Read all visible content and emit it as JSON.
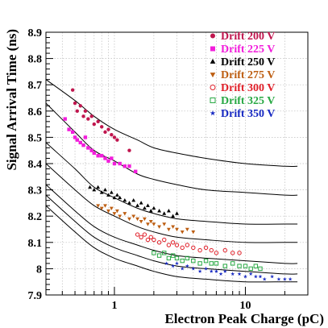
{
  "chart_data": {
    "type": "scatter",
    "title": "",
    "xlabel": "Electron Peak Charge (pC)",
    "ylabel": "Signal Arrival Time (ns)",
    "xscale": "log",
    "xlim": [
      0.3,
      30
    ],
    "ylim": [
      7.9,
      8.9
    ],
    "xticks": [
      {
        "value": 1,
        "label": "1"
      },
      {
        "value": 10,
        "label": "10"
      }
    ],
    "yticks": [
      {
        "value": 7.9,
        "label": "7.9"
      },
      {
        "value": 8.0,
        "label": "8"
      },
      {
        "value": 8.1,
        "label": "8.1"
      },
      {
        "value": 8.2,
        "label": "8.2"
      },
      {
        "value": 8.3,
        "label": "8.3"
      },
      {
        "value": 8.4,
        "label": "8.4"
      },
      {
        "value": 8.5,
        "label": "8.5"
      },
      {
        "value": 8.6,
        "label": "8.6"
      },
      {
        "value": 8.7,
        "label": "8.7"
      },
      {
        "value": 8.8,
        "label": "8.8"
      },
      {
        "value": 8.9,
        "label": "8.9"
      }
    ],
    "grid": true,
    "legend_position": "top-right",
    "series": [
      {
        "name": "Drift 200 V",
        "color": "#c0164e",
        "marker": "circle-filled",
        "x": [
          0.48,
          0.5,
          0.52,
          0.55,
          0.58,
          0.6,
          0.63,
          0.67,
          0.7,
          0.75,
          0.8,
          0.85,
          0.9,
          0.95,
          1.0,
          1.05,
          1.3
        ],
        "y": [
          8.68,
          8.63,
          8.6,
          8.62,
          8.58,
          8.6,
          8.57,
          8.58,
          8.55,
          8.56,
          8.54,
          8.52,
          8.53,
          8.51,
          8.5,
          8.49,
          8.45
        ],
        "fit": [
          [
            0.3,
            8.72
          ],
          [
            0.5,
            8.64
          ],
          [
            0.7,
            8.58
          ],
          [
            1,
            8.53
          ],
          [
            1.5,
            8.49
          ],
          [
            2,
            8.46
          ],
          [
            3,
            8.44
          ],
          [
            5,
            8.42
          ],
          [
            10,
            8.4
          ],
          [
            20,
            8.39
          ],
          [
            25,
            8.39
          ]
        ]
      },
      {
        "name": "Drift 225 V",
        "color": "#f21ddb",
        "marker": "square-filled",
        "x": [
          0.42,
          0.45,
          0.48,
          0.5,
          0.52,
          0.55,
          0.58,
          0.6,
          0.63,
          0.67,
          0.7,
          0.75,
          0.8,
          0.85,
          0.9,
          0.95,
          1.0,
          1.1,
          1.2,
          1.3,
          1.45
        ],
        "y": [
          8.57,
          8.53,
          8.52,
          8.5,
          8.49,
          8.48,
          8.47,
          8.5,
          8.46,
          8.45,
          8.44,
          8.43,
          8.43,
          8.42,
          8.41,
          8.42,
          8.4,
          8.4,
          8.39,
          8.39,
          8.37
        ],
        "fit": [
          [
            0.3,
            8.63
          ],
          [
            0.5,
            8.52
          ],
          [
            0.7,
            8.45
          ],
          [
            1,
            8.41
          ],
          [
            1.5,
            8.36
          ],
          [
            2,
            8.34
          ],
          [
            3,
            8.32
          ],
          [
            5,
            8.3
          ],
          [
            10,
            8.29
          ],
          [
            20,
            8.28
          ],
          [
            25,
            8.28
          ]
        ]
      },
      {
        "name": "Drift 250 V",
        "color": "#000000",
        "marker": "triangle-up",
        "x": [
          0.65,
          0.7,
          0.75,
          0.8,
          0.85,
          0.9,
          0.95,
          1.0,
          1.05,
          1.1,
          1.2,
          1.3,
          1.4,
          1.5,
          1.6,
          1.7,
          1.8,
          1.9,
          2.0,
          2.2,
          2.4,
          2.6,
          2.8,
          3.0
        ],
        "y": [
          8.31,
          8.3,
          8.31,
          8.29,
          8.3,
          8.28,
          8.29,
          8.27,
          8.28,
          8.27,
          8.26,
          8.25,
          8.26,
          8.24,
          8.25,
          8.23,
          8.24,
          8.22,
          8.23,
          8.22,
          8.21,
          8.22,
          8.2,
          8.21
        ],
        "fit": [
          [
            0.3,
            8.48
          ],
          [
            0.5,
            8.38
          ],
          [
            0.7,
            8.31
          ],
          [
            1,
            8.27
          ],
          [
            1.5,
            8.23
          ],
          [
            2,
            8.21
          ],
          [
            3,
            8.19
          ],
          [
            5,
            8.18
          ],
          [
            10,
            8.17
          ],
          [
            20,
            8.17
          ],
          [
            25,
            8.17
          ]
        ]
      },
      {
        "name": "Drift 275 V",
        "color": "#bd5e12",
        "marker": "triangle-down",
        "x": [
          0.75,
          0.8,
          0.85,
          0.9,
          0.95,
          1.0,
          1.05,
          1.1,
          1.2,
          1.3,
          1.4,
          1.5,
          1.6,
          1.7,
          1.8,
          1.9,
          2.0,
          2.2,
          2.4,
          2.6,
          2.8,
          3.0,
          3.3,
          3.6,
          4.0
        ],
        "y": [
          8.24,
          8.23,
          8.24,
          8.22,
          8.23,
          8.21,
          8.22,
          8.2,
          8.21,
          8.19,
          8.2,
          8.19,
          8.18,
          8.19,
          8.17,
          8.18,
          8.17,
          8.16,
          8.17,
          8.15,
          8.16,
          8.15,
          8.14,
          8.15,
          8.14
        ],
        "fit": [
          [
            0.3,
            8.4
          ],
          [
            0.5,
            8.3
          ],
          [
            0.7,
            8.24
          ],
          [
            1,
            8.2
          ],
          [
            1.5,
            8.16
          ],
          [
            2,
            8.14
          ],
          [
            3,
            8.12
          ],
          [
            5,
            8.11
          ],
          [
            10,
            8.1
          ],
          [
            20,
            8.1
          ],
          [
            25,
            8.1
          ]
        ]
      },
      {
        "name": "Drift 300 V",
        "color": "#e0202a",
        "marker": "circle-open",
        "x": [
          1.5,
          1.6,
          1.7,
          1.8,
          1.9,
          2.0,
          2.2,
          2.4,
          2.6,
          2.8,
          3.0,
          3.3,
          3.6,
          4.0,
          4.5,
          5.0,
          5.5,
          6.0,
          7.0,
          8.0,
          9.0
        ],
        "y": [
          8.13,
          8.12,
          8.13,
          8.11,
          8.12,
          8.11,
          8.1,
          8.11,
          8.09,
          8.1,
          8.09,
          8.08,
          8.09,
          8.08,
          8.07,
          8.08,
          8.07,
          8.06,
          8.07,
          8.06,
          8.06
        ],
        "fit": [
          [
            0.3,
            8.32
          ],
          [
            0.5,
            8.22
          ],
          [
            0.7,
            8.16
          ],
          [
            1,
            8.12
          ],
          [
            1.5,
            8.09
          ],
          [
            2,
            8.07
          ],
          [
            3,
            8.05
          ],
          [
            5,
            8.04
          ],
          [
            10,
            8.03
          ],
          [
            20,
            8.02
          ],
          [
            25,
            8.02
          ]
        ]
      },
      {
        "name": "Drift 325 V",
        "color": "#27a843",
        "marker": "square-open",
        "x": [
          2.0,
          2.2,
          2.4,
          2.6,
          2.8,
          3.0,
          3.3,
          3.6,
          4.0,
          4.5,
          5.0,
          5.5,
          6.0,
          7.0,
          8.0,
          9.0,
          10.0,
          11.0,
          12.0,
          13.0
        ],
        "y": [
          8.06,
          8.05,
          8.06,
          8.04,
          8.05,
          8.04,
          8.03,
          8.04,
          8.03,
          8.02,
          8.03,
          8.02,
          8.02,
          8.01,
          8.02,
          8.01,
          8.01,
          8.0,
          8.01,
          8.0
        ],
        "fit": [
          [
            0.3,
            8.28
          ],
          [
            0.5,
            8.18
          ],
          [
            0.7,
            8.12
          ],
          [
            1,
            8.08
          ],
          [
            1.5,
            8.05
          ],
          [
            2,
            8.03
          ],
          [
            3,
            8.01
          ],
          [
            5,
            8.0
          ],
          [
            10,
            7.99
          ],
          [
            20,
            7.98
          ],
          [
            25,
            7.98
          ]
        ]
      },
      {
        "name": "Drift 350 V",
        "color": "#1628c2",
        "marker": "star",
        "x": [
          2.5,
          2.8,
          3.0,
          3.3,
          3.6,
          4.0,
          4.5,
          5.0,
          5.5,
          6.0,
          6.5,
          7.0,
          8.0,
          9.0,
          10.0,
          11.0,
          12.0,
          13.0,
          14.0,
          16.0,
          18.0,
          20.0,
          22.0
        ],
        "y": [
          8.02,
          8.01,
          8.02,
          8.0,
          8.01,
          8.0,
          7.99,
          8.0,
          7.99,
          7.99,
          7.98,
          7.99,
          7.98,
          7.98,
          7.97,
          7.98,
          7.97,
          7.97,
          7.96,
          7.97,
          7.96,
          7.96,
          7.96
        ],
        "fit": [
          [
            0.3,
            8.24
          ],
          [
            0.5,
            8.14
          ],
          [
            0.7,
            8.08
          ],
          [
            1,
            8.04
          ],
          [
            1.5,
            8.01
          ],
          [
            2,
            7.99
          ],
          [
            3,
            7.97
          ],
          [
            5,
            7.96
          ],
          [
            10,
            7.95
          ],
          [
            20,
            7.95
          ],
          [
            25,
            7.95
          ]
        ]
      }
    ]
  }
}
